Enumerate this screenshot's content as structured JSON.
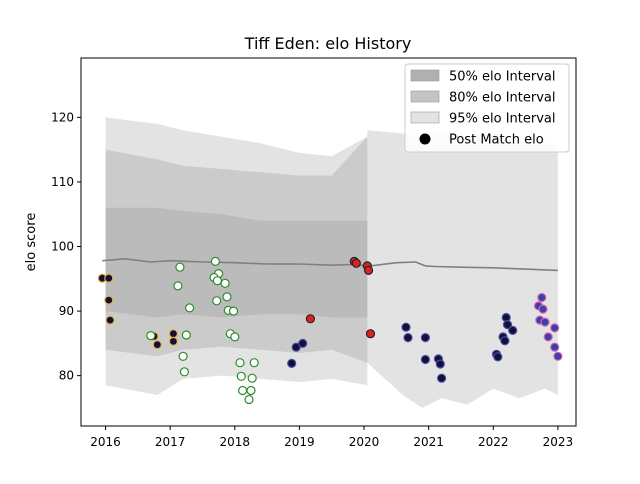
{
  "chart_data": {
    "type": "scatter",
    "title": "Tiff Eden: elo History",
    "xlabel": "",
    "ylabel": "elo score",
    "xlim": [
      2015.62,
      2023.28
    ],
    "ylim": [
      72.2,
      129.2
    ],
    "x_ticks": [
      2016,
      2017,
      2018,
      2019,
      2020,
      2021,
      2022,
      2023
    ],
    "x_tick_labels": [
      "2016",
      "2017",
      "2018",
      "2019",
      "2020",
      "2021",
      "2022",
      "2023"
    ],
    "y_ticks": [
      80,
      90,
      100,
      110,
      120
    ],
    "y_tick_labels": [
      "80",
      "90",
      "100",
      "110",
      "120"
    ],
    "grid": false,
    "legend": {
      "position": "top-right",
      "entries": [
        {
          "label": "50% elo Interval",
          "kind": "band",
          "color": "#b0b0b0"
        },
        {
          "label": "80% elo Interval",
          "kind": "band",
          "color": "#c4c4c4"
        },
        {
          "label": "95% elo Interval",
          "kind": "band",
          "color": "#e3e3e3"
        },
        {
          "label": "Post Match elo",
          "kind": "point",
          "color": "#000000"
        }
      ]
    },
    "colors": {
      "band_95": "#e3e3e3",
      "band_80": "#c7c7c7",
      "band_50": "#b8b8b8",
      "mean_line": "#808080"
    },
    "bands": [
      {
        "name": "95% elo Interval",
        "x": [
          2016.0,
          2016.8,
          2017.2,
          2017.8,
          2018.4,
          2019.0,
          2019.5,
          2020.05,
          2020.05,
          2020.6,
          2020.9,
          2021.2,
          2021.6,
          2022.0,
          2022.4,
          2022.8,
          2023.0
        ],
        "upper": [
          120.0,
          119.0,
          118.0,
          117.0,
          116.0,
          114.5,
          114.0,
          117.0,
          118.0,
          117.5,
          117.0,
          117.8,
          116.8,
          117.5,
          116.0,
          116.2,
          115.5
        ],
        "lower": [
          78.5,
          77.0,
          79.5,
          80.0,
          79.5,
          79.0,
          79.5,
          78.5,
          82.0,
          77.0,
          75.0,
          76.5,
          75.5,
          78.0,
          76.5,
          78.0,
          77.0
        ]
      },
      {
        "name": "80% elo Interval",
        "x": [
          2016.0,
          2016.8,
          2017.2,
          2017.8,
          2018.4,
          2019.0,
          2019.5,
          2020.05
        ],
        "upper": [
          115.0,
          113.5,
          112.5,
          112.0,
          111.5,
          111.0,
          111.0,
          117.0
        ],
        "lower": [
          84.0,
          83.0,
          84.0,
          84.5,
          84.0,
          83.5,
          84.0,
          82.0
        ]
      },
      {
        "name": "50% elo Interval",
        "x": [
          2016.0,
          2016.8,
          2017.2,
          2017.8,
          2018.4,
          2019.0,
          2019.5,
          2020.05
        ],
        "upper": [
          106.0,
          106.0,
          105.5,
          105.0,
          104.0,
          104.0,
          104.0,
          104.0
        ],
        "lower": [
          90.0,
          89.0,
          89.5,
          89.0,
          89.5,
          89.5,
          89.0,
          89.0
        ]
      }
    ],
    "mean_line": {
      "x": [
        2015.95,
        2016.3,
        2016.7,
        2017.0,
        2017.5,
        2018.0,
        2018.5,
        2019.0,
        2019.5,
        2019.8,
        2020.1,
        2020.5,
        2020.8,
        2020.95,
        2021.1,
        2021.5,
        2022.0,
        2022.5,
        2023.0
      ],
      "y": [
        97.8,
        98.1,
        97.6,
        97.8,
        97.6,
        97.5,
        97.3,
        97.3,
        97.1,
        97.2,
        97.0,
        97.5,
        97.6,
        97.0,
        96.9,
        96.8,
        96.7,
        96.5,
        96.3
      ]
    },
    "series": [
      {
        "fill": "#111133",
        "edge": "#e8b04a",
        "points": [
          [
            2015.95,
            95.1
          ],
          [
            2016.05,
            95.1
          ],
          [
            2016.05,
            91.7
          ],
          [
            2016.07,
            88.6
          ],
          [
            2016.75,
            86.1
          ],
          [
            2016.8,
            84.8
          ],
          [
            2017.05,
            86.5
          ],
          [
            2017.05,
            85.3
          ]
        ]
      },
      {
        "fill": "#ffffff",
        "edge": "#2e8b2e",
        "points": [
          [
            2016.7,
            86.2
          ],
          [
            2017.15,
            96.8
          ],
          [
            2017.12,
            93.9
          ],
          [
            2017.2,
            83.0
          ],
          [
            2017.22,
            80.6
          ],
          [
            2017.25,
            86.3
          ],
          [
            2017.3,
            90.5
          ],
          [
            2017.7,
            97.7
          ],
          [
            2017.75,
            95.8
          ],
          [
            2017.68,
            95.2
          ],
          [
            2017.73,
            94.7
          ],
          [
            2017.72,
            91.6
          ],
          [
            2017.85,
            94.3
          ],
          [
            2017.88,
            92.2
          ],
          [
            2017.9,
            90.1
          ],
          [
            2017.93,
            86.5
          ],
          [
            2018.0,
            86.0
          ],
          [
            2017.98,
            90.0
          ],
          [
            2018.08,
            82.0
          ],
          [
            2018.1,
            79.9
          ],
          [
            2018.12,
            77.7
          ],
          [
            2018.22,
            76.3
          ],
          [
            2018.25,
            77.7
          ],
          [
            2018.27,
            79.6
          ],
          [
            2018.3,
            82.0
          ]
        ]
      },
      {
        "fill": "#111133",
        "edge": "#4a4ab0",
        "points": [
          [
            2018.88,
            81.9
          ],
          [
            2018.95,
            84.4
          ],
          [
            2019.05,
            85.0
          ],
          [
            2020.65,
            87.5
          ],
          [
            2020.68,
            85.9
          ],
          [
            2020.95,
            85.9
          ],
          [
            2020.95,
            82.5
          ],
          [
            2021.15,
            82.6
          ],
          [
            2021.18,
            81.8
          ],
          [
            2021.2,
            79.6
          ],
          [
            2022.05,
            83.3
          ],
          [
            2022.07,
            82.9
          ],
          [
            2022.15,
            86.0
          ],
          [
            2022.18,
            85.4
          ],
          [
            2022.2,
            89.0
          ],
          [
            2022.22,
            87.9
          ],
          [
            2022.3,
            87.0
          ]
        ]
      },
      {
        "fill": "#dd2222",
        "edge": "#222222",
        "points": [
          [
            2019.17,
            88.8
          ],
          [
            2019.85,
            97.7
          ],
          [
            2019.88,
            97.4
          ],
          [
            2020.05,
            97.0
          ],
          [
            2020.07,
            96.3
          ],
          [
            2020.1,
            86.5
          ]
        ]
      },
      {
        "fill": "#3344aa",
        "edge": "#e060b0",
        "points": [
          [
            2022.7,
            90.8
          ],
          [
            2022.72,
            88.6
          ],
          [
            2022.75,
            92.1
          ],
          [
            2022.77,
            90.3
          ],
          [
            2022.8,
            88.3
          ],
          [
            2022.85,
            86.0
          ],
          [
            2022.95,
            87.4
          ],
          [
            2022.95,
            84.4
          ],
          [
            2023.0,
            83.0
          ]
        ]
      }
    ]
  }
}
